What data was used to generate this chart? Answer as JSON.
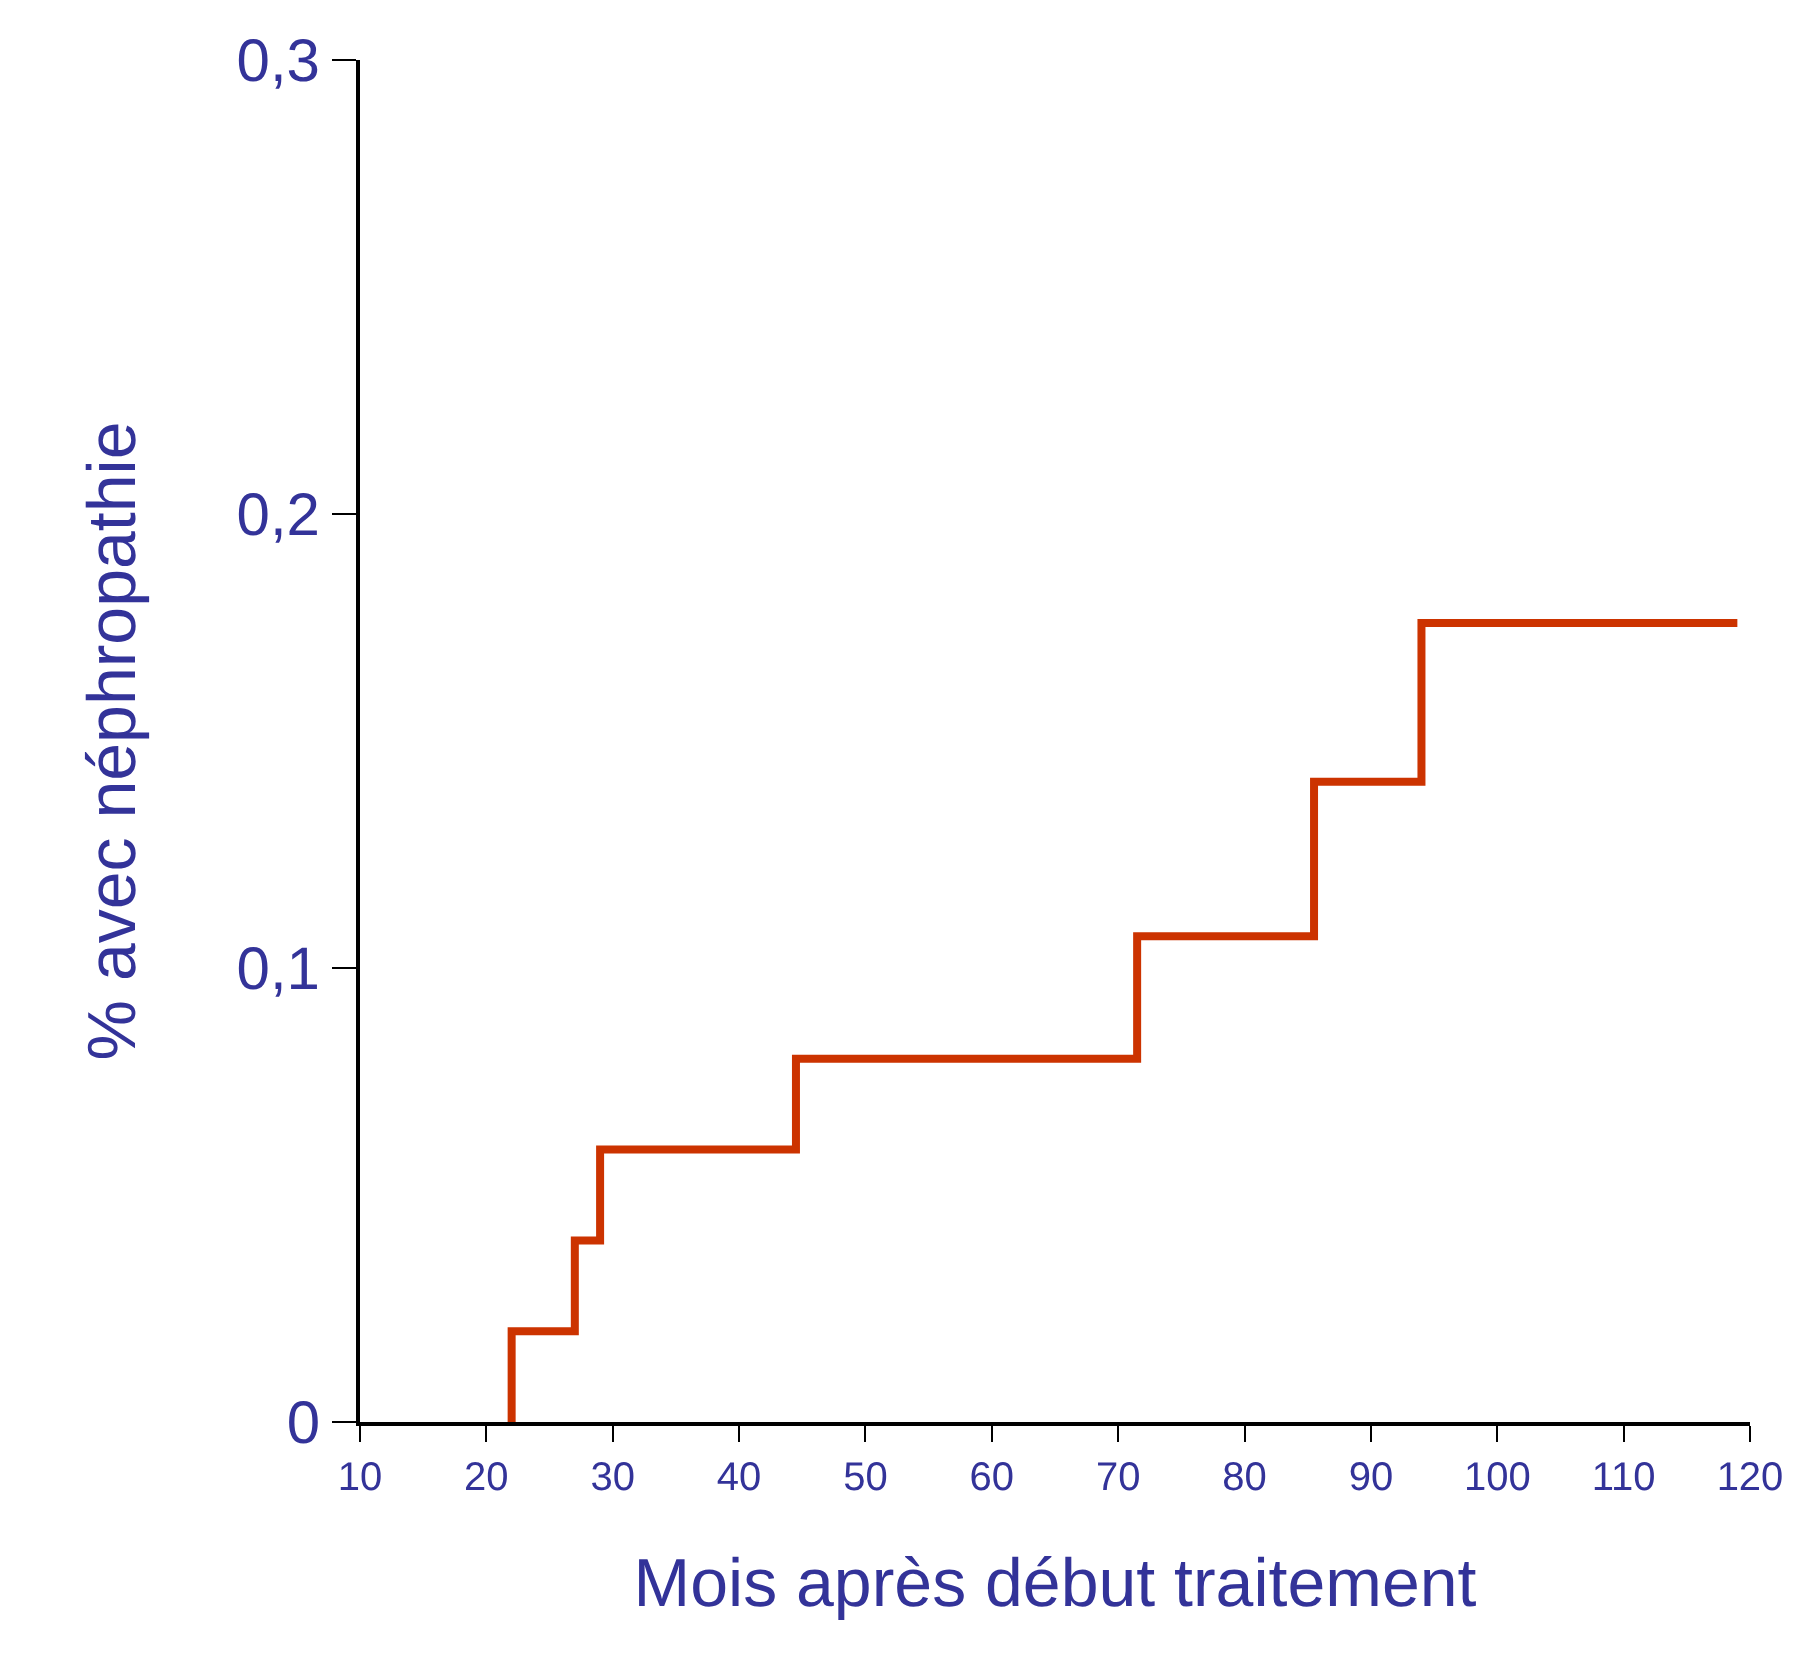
{
  "chart_data": {
    "type": "step",
    "xlabel": "Mois après début traitement",
    "ylabel": "% avec néphropathie",
    "x": [
      22,
      22,
      27,
      29,
      44.5,
      71.5,
      85.5,
      94,
      119
    ],
    "series": [
      {
        "color": "#cc3300",
        "values": [
          0,
          0.02,
          0.04,
          0.06,
          0.08,
          0.107,
          0.141,
          0.176,
          0.176
        ]
      }
    ],
    "xlim": [
      10,
      120
    ],
    "xticks": [
      10,
      20,
      30,
      40,
      50,
      60,
      70,
      80,
      90,
      100,
      110,
      120
    ],
    "ylim": [
      0,
      0.3
    ],
    "yticks": [
      0,
      {
        "value": 0.1,
        "label": "0,1"
      },
      {
        "value": 0.2,
        "label": "0,2"
      },
      {
        "value": 0.3,
        "label": "0,3"
      }
    ],
    "marker": "none",
    "line_style": "solid"
  }
}
